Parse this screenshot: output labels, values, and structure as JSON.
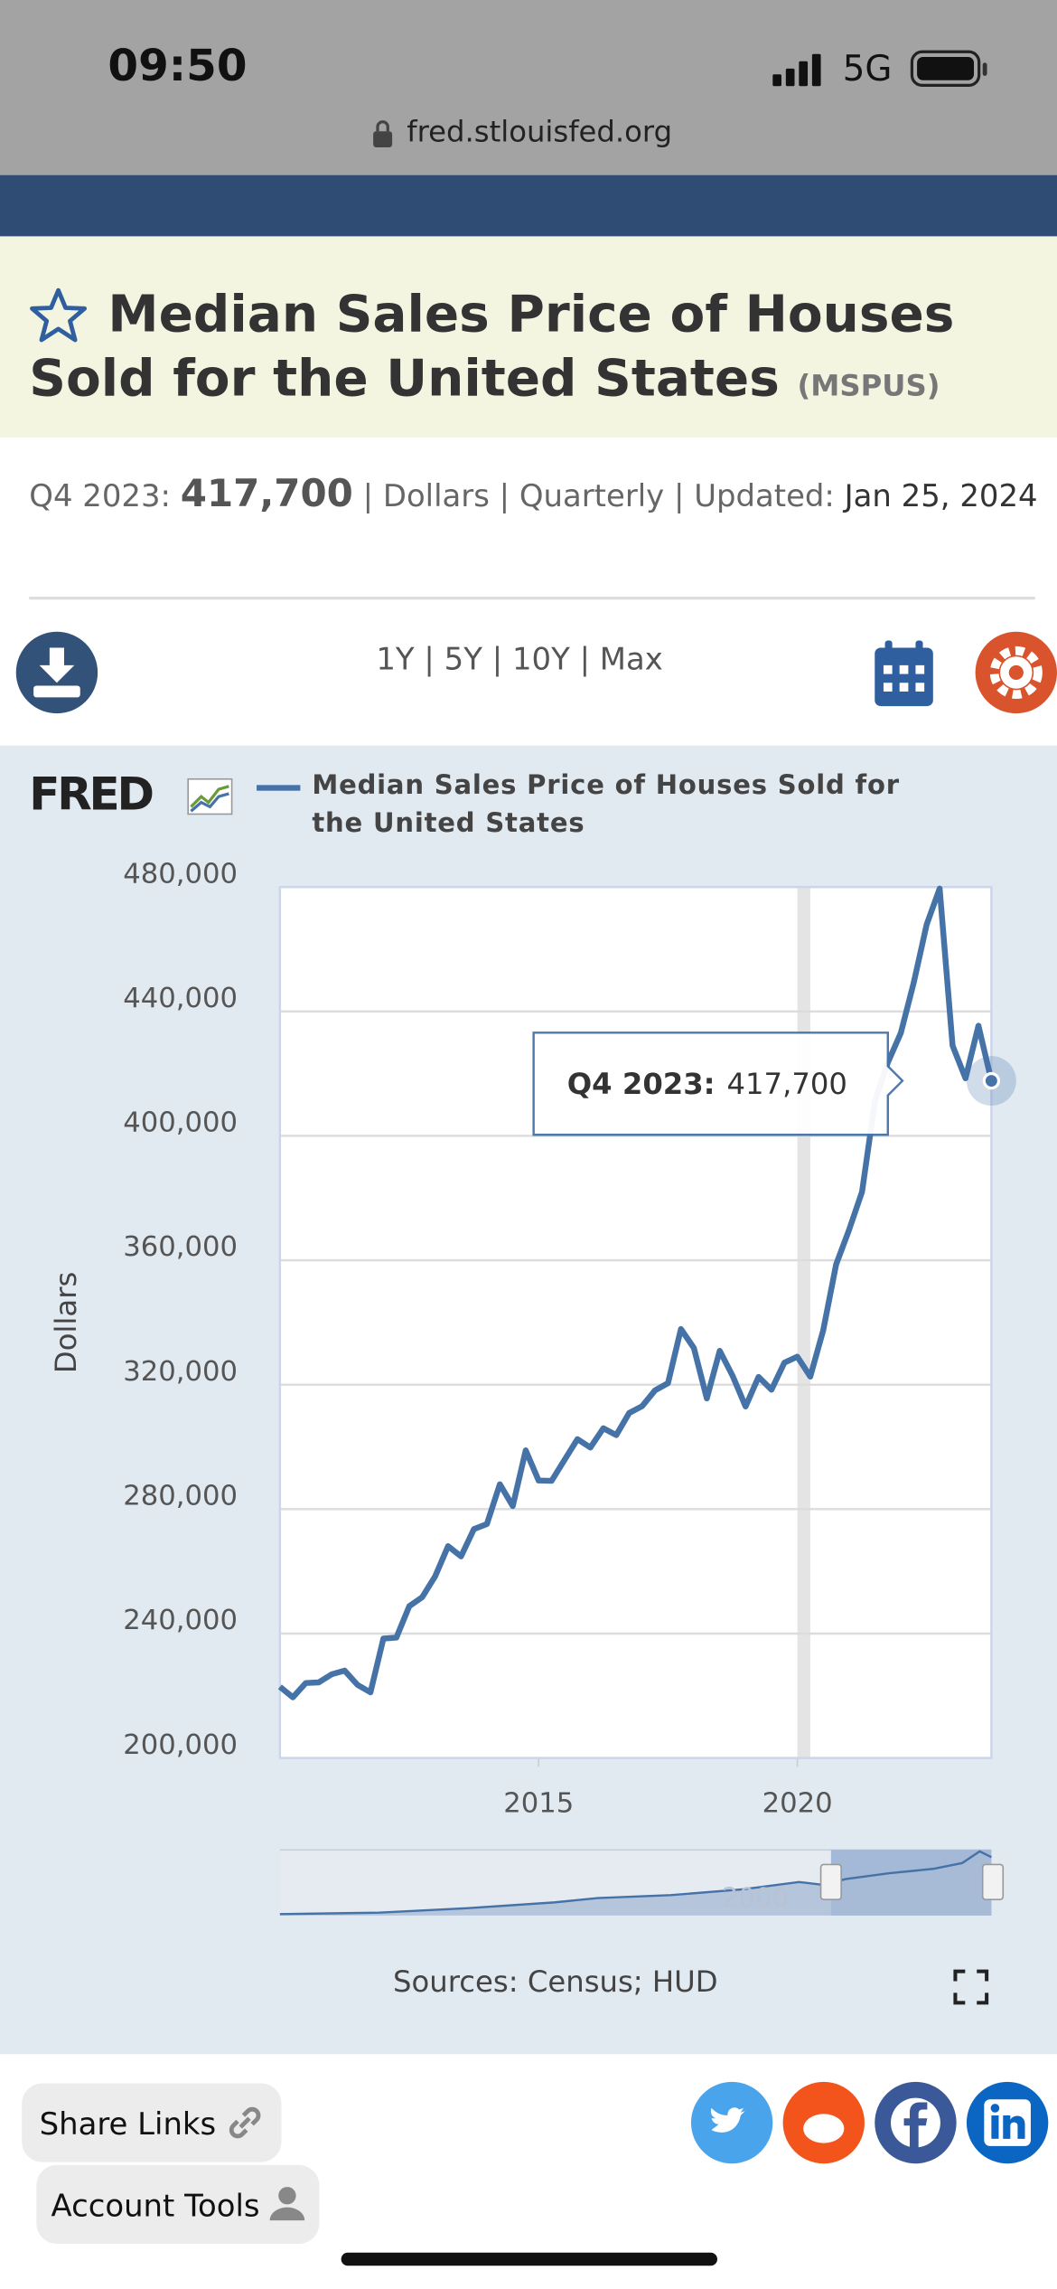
{
  "status_bar": {
    "time": "09:50",
    "network": "5G"
  },
  "url": "fred.stlouisfed.org",
  "header": {
    "title": "Median Sales Price of Houses Sold for the United States",
    "series_id": "(MSPUS)"
  },
  "summary": {
    "period": "Q4 2023:",
    "value": "417,700",
    "details": "| Dollars | Quarterly | Updated:",
    "updated": "Jan 25, 2024"
  },
  "range_buttons": [
    "1Y",
    "5Y",
    "10Y",
    "Max"
  ],
  "range_separator": "|",
  "logo": "FRED",
  "chart_data": {
    "type": "line",
    "y_label": "Dollars",
    "x": [
      2010,
      2010.25,
      2010.5,
      2010.75,
      2011,
      2011.25,
      2011.5,
      2011.75,
      2012,
      2012.25,
      2012.5,
      2012.75,
      2013,
      2013.25,
      2013.5,
      2013.75,
      2014,
      2014.25,
      2014.5,
      2014.75,
      2015,
      2015.25,
      2015.5,
      2015.75,
      2016,
      2016.25,
      2016.5,
      2016.75,
      2017,
      2017.25,
      2017.5,
      2017.75,
      2018,
      2018.25,
      2018.5,
      2018.75,
      2019,
      2019.25,
      2019.5,
      2019.75,
      2020,
      2020.25,
      2020.5,
      2020.75,
      2021,
      2021.25,
      2021.5,
      2021.75,
      2022,
      2022.25,
      2022.5,
      2022.75,
      2023,
      2023.25,
      2023.5,
      2023.75
    ],
    "series": [
      {
        "name": "Median Sales Price of Houses Sold for the United States",
        "color": "#4572a7",
        "values": [
          222900,
          219500,
          224100,
          224300,
          226900,
          228100,
          223500,
          221100,
          238400,
          238700,
          248800,
          251700,
          258400,
          268100,
          264800,
          273600,
          275200,
          288000,
          281000,
          298900,
          289200,
          289100,
          295800,
          302500,
          299800,
          306000,
          303800,
          310900,
          313100,
          318200,
          320500,
          337900,
          331800,
          315600,
          330900,
          322800,
          313000,
          322500,
          318400,
          327100,
          329000,
          322600,
          337500,
          358700,
          369800,
          382000,
          411200,
          423600,
          433100,
          449300,
          468000,
          479500,
          429000,
          418500,
          435400,
          417700
        ]
      }
    ],
    "xlim": [
      2010,
      2023.75
    ],
    "xticks": [
      2015,
      2020
    ],
    "ylim": [
      200000,
      480000
    ],
    "yticks": [
      {
        "value": 200000,
        "label": "200,000"
      },
      {
        "value": 240000,
        "label": "240,000"
      },
      {
        "value": 280000,
        "label": "280,000"
      },
      {
        "value": 320000,
        "label": "320,000"
      },
      {
        "value": 360000,
        "label": "360,000"
      },
      {
        "value": 400000,
        "label": "400,000"
      },
      {
        "value": 440000,
        "label": "440,000"
      },
      {
        "value": 480000,
        "label": "480,000"
      }
    ],
    "bands": [
      {
        "from": 2020,
        "to": 2020.25
      }
    ],
    "grid": true,
    "tooltip": {
      "label": "Q4 2023:",
      "value_label": "417,700"
    },
    "navigator_label": "2000"
  },
  "sources": "Sources: Census; HUD",
  "share_links": "Share Links",
  "account_tools": "Account Tools"
}
